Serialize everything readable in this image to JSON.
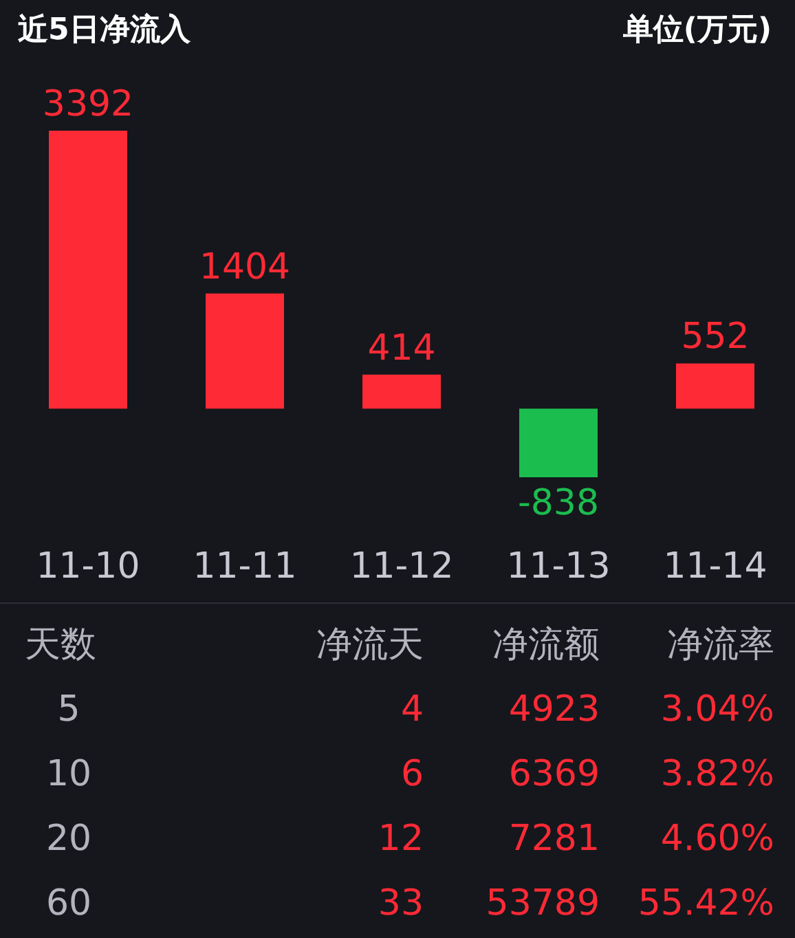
{
  "chart_data": [
    {
      "type": "bar",
      "title": "近5日净流入",
      "subtitle": "单位(万元)",
      "categories": [
        "11-10",
        "11-11",
        "11-12",
        "11-13",
        "11-14"
      ],
      "values": [
        3392,
        1404,
        414,
        -838,
        552
      ],
      "colors": [
        "#fe2a36",
        "#fe2a36",
        "#fe2a36",
        "#1cbd4f",
        "#fe2a36"
      ],
      "data_labels": true
    },
    {
      "type": "other",
      "annotations": [
        "天数",
        "净流天",
        "净流额",
        "净流率",
        "5",
        "4",
        "4923",
        "3.04%",
        "10",
        "6",
        "6369",
        "3.82%",
        "20",
        "12",
        "7281",
        "4.60%",
        "60",
        "33",
        "53789",
        "55.42%"
      ]
    }
  ]
}
